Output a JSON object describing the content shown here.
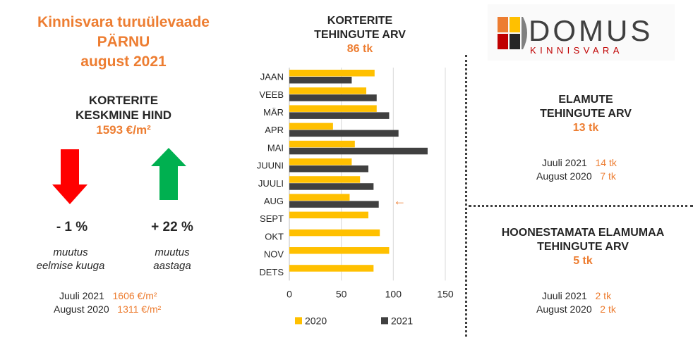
{
  "header": {
    "title_line1": "Kinnisvara turuülevaade",
    "title_line2": "PÄRNU",
    "title_line3": "august 2021"
  },
  "price": {
    "head_line1": "KORTERITE",
    "head_line2": "KESKMINE HIND",
    "value": "1593 €/m²",
    "monthly": {
      "pct": "- 1 %",
      "note_line1": "muutus",
      "note_line2": "eelmise kuuga"
    },
    "yearly": {
      "pct": "+ 22 %",
      "note_line1": "muutus",
      "note_line2": "aastaga"
    },
    "compare": [
      {
        "label": "Juuli 2021",
        "value": "1606 €/m²"
      },
      {
        "label": "August 2020",
        "value": "1311 €/m²"
      }
    ]
  },
  "chart_head": {
    "line1": "KORTERITE",
    "line2": "TEHINGUTE ARV",
    "value": "86 tk"
  },
  "chart_data": {
    "type": "bar",
    "orientation": "horizontal",
    "categories": [
      "JAAN",
      "VEEB",
      "MÄR",
      "APR",
      "MAI",
      "JUUNI",
      "JUULI",
      "AUG",
      "SEPT",
      "OKT",
      "NOV",
      "DETS"
    ],
    "series": [
      {
        "name": "2020",
        "color": "#FFC000",
        "values": [
          82,
          74,
          84,
          42,
          63,
          60,
          68,
          58,
          76,
          87,
          96,
          81
        ]
      },
      {
        "name": "2021",
        "color": "#404040",
        "values": [
          60,
          84,
          96,
          105,
          133,
          76,
          81,
          86,
          null,
          null,
          null,
          null
        ]
      }
    ],
    "xticks": [
      "0",
      "50",
      "100",
      "150"
    ],
    "xlim": [
      0,
      150
    ],
    "legend_position": "bottom",
    "annotation": "←"
  },
  "elamu": {
    "head_line1": "ELAMUTE",
    "head_line2": "TEHINGUTE ARV",
    "value": "13 tk",
    "compare": [
      {
        "label": "Juuli 2021",
        "value": "14 tk"
      },
      {
        "label": "August 2020",
        "value": "7 tk"
      }
    ]
  },
  "maa": {
    "head_line1": "HOONESTAMATA ELAMUMAA",
    "head_line2": "TEHINGUTE ARV",
    "value": "5 tk",
    "compare": [
      {
        "label": "Juuli 2021",
        "value": "2 tk"
      },
      {
        "label": "August 2020",
        "value": "2 tk"
      }
    ]
  },
  "logo": {
    "brand": "DOMUS",
    "sub": "KINNISVARA"
  }
}
